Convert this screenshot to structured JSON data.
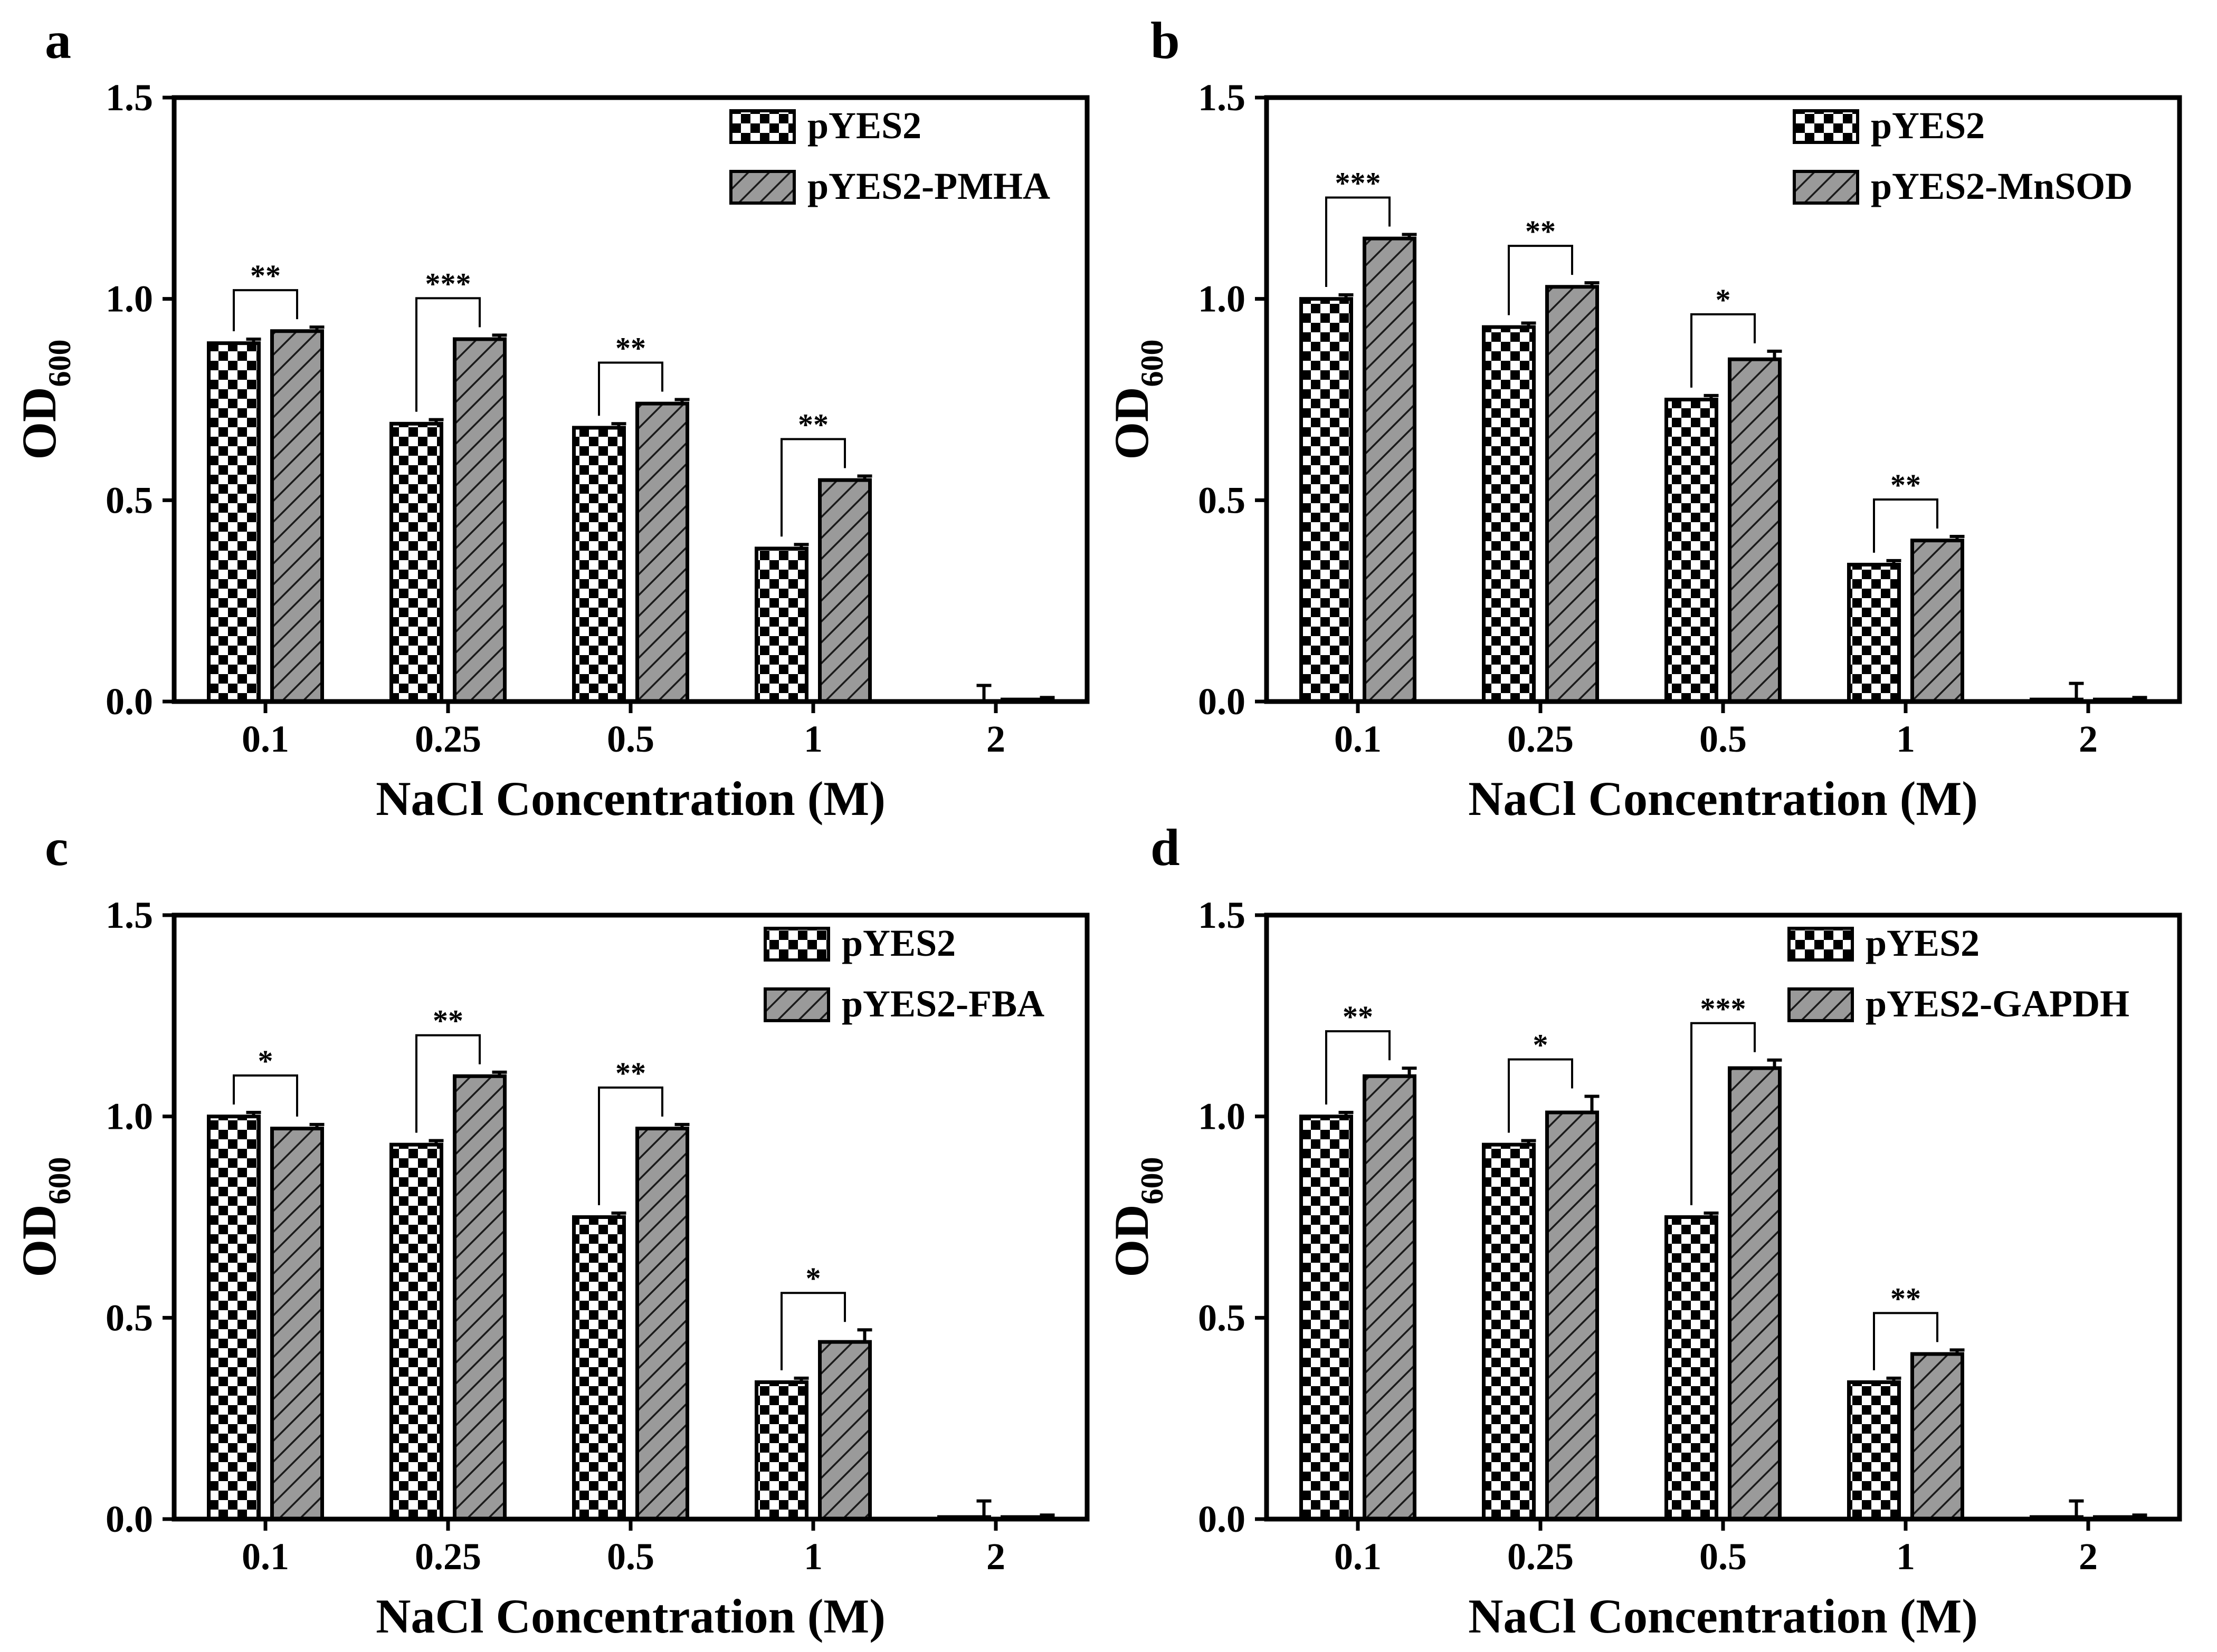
{
  "chart_data": [
    {
      "panel_label": "a",
      "type": "bar",
      "xlabel": "NaCl Concentration (M)",
      "ylabel_main": "OD",
      "ylabel_sub": "600",
      "ylim": [
        0,
        1.5
      ],
      "yticks": [
        "0.0",
        "0.5",
        "1.0",
        "1.5"
      ],
      "categories": [
        "0.1",
        "0.25",
        "0.5",
        "1",
        "2"
      ],
      "series": [
        {
          "name": "pYES2",
          "pattern": "checker",
          "values": [
            0.89,
            0.69,
            0.68,
            0.38,
            0.0
          ],
          "errors": [
            0.01,
            0.01,
            0.01,
            0.01,
            0.04
          ]
        },
        {
          "name": "pYES2-PMHA",
          "pattern": "hatch",
          "values": [
            0.92,
            0.9,
            0.74,
            0.55,
            0.005
          ],
          "errors": [
            0.01,
            0.01,
            0.01,
            0.01,
            0.005
          ]
        }
      ],
      "significance": [
        "**",
        "***",
        "**",
        "**",
        ""
      ]
    },
    {
      "panel_label": "b",
      "type": "bar",
      "xlabel": "NaCl Concentration (M)",
      "ylabel_main": "OD",
      "ylabel_sub": "600",
      "ylim": [
        0,
        1.5
      ],
      "yticks": [
        "0.0",
        "0.5",
        "1.0",
        "1.5"
      ],
      "categories": [
        "0.1",
        "0.25",
        "0.5",
        "1",
        "2"
      ],
      "series": [
        {
          "name": "pYES2",
          "pattern": "checker",
          "values": [
            1.0,
            0.93,
            0.75,
            0.34,
            0.005
          ],
          "errors": [
            0.01,
            0.01,
            0.01,
            0.01,
            0.04
          ]
        },
        {
          "name": "pYES2-MnSOD",
          "pattern": "hatch",
          "values": [
            1.15,
            1.03,
            0.85,
            0.4,
            0.005
          ],
          "errors": [
            0.01,
            0.01,
            0.02,
            0.01,
            0.005
          ]
        }
      ],
      "significance": [
        "***",
        "**",
        "*",
        "**",
        ""
      ]
    },
    {
      "panel_label": "c",
      "type": "bar",
      "xlabel": "NaCl Concentration (M)",
      "ylabel_main": "OD",
      "ylabel_sub": "600",
      "ylim": [
        0,
        1.5
      ],
      "yticks": [
        "0.0",
        "0.5",
        "1.0",
        "1.5"
      ],
      "categories": [
        "0.1",
        "0.25",
        "0.5",
        "1",
        "2"
      ],
      "series": [
        {
          "name": "pYES2",
          "pattern": "checker",
          "values": [
            1.0,
            0.93,
            0.75,
            0.34,
            0.005
          ],
          "errors": [
            0.01,
            0.01,
            0.01,
            0.01,
            0.04
          ]
        },
        {
          "name": "pYES2-FBA",
          "pattern": "hatch",
          "values": [
            0.97,
            1.1,
            0.97,
            0.44,
            0.005
          ],
          "errors": [
            0.01,
            0.01,
            0.01,
            0.03,
            0.005
          ]
        }
      ],
      "significance": [
        "*",
        "**",
        "**",
        "*",
        ""
      ]
    },
    {
      "panel_label": "d",
      "type": "bar",
      "xlabel": "NaCl Concentration (M)",
      "ylabel_main": "OD",
      "ylabel_sub": "600",
      "ylim": [
        0,
        1.5
      ],
      "yticks": [
        "0.0",
        "0.5",
        "1.0",
        "1.5"
      ],
      "categories": [
        "0.1",
        "0.25",
        "0.5",
        "1",
        "2"
      ],
      "series": [
        {
          "name": "pYES2",
          "pattern": "checker",
          "values": [
            1.0,
            0.93,
            0.75,
            0.34,
            0.005
          ],
          "errors": [
            0.01,
            0.01,
            0.01,
            0.01,
            0.04
          ]
        },
        {
          "name": "pYES2-GAPDH",
          "pattern": "hatch",
          "values": [
            1.1,
            1.01,
            1.12,
            0.41,
            0.005
          ],
          "errors": [
            0.02,
            0.04,
            0.02,
            0.01,
            0.005
          ]
        }
      ],
      "significance": [
        "**",
        "*",
        "***",
        "**",
        ""
      ]
    }
  ]
}
